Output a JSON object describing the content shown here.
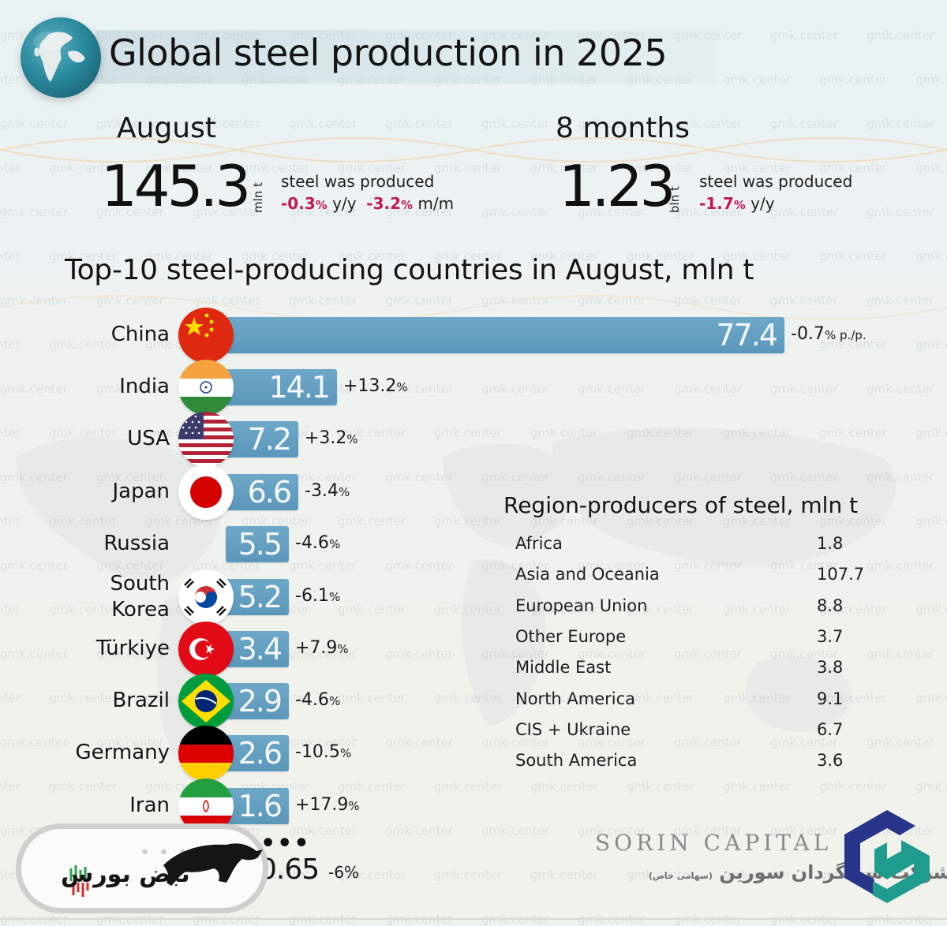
{
  "header": {
    "title": "Global steel production in 2025"
  },
  "august": {
    "label": "August",
    "value": "145.3",
    "unit": "mln t",
    "description": "steel was produced",
    "yoy_value": "-0.3",
    "yoy_suffix": "y/y",
    "mom_value": "-3.2",
    "mom_suffix": "m/m"
  },
  "eight_months": {
    "label": "8 months",
    "value": "1.23",
    "unit": "bln t",
    "description": "steel was produced",
    "yoy_value": "-1.7",
    "yoy_suffix": "y/y"
  },
  "chart_data": {
    "type": "bar",
    "orientation": "horizontal",
    "title": "Top-10 steel-producing countries in August, mln t",
    "xlabel": "",
    "ylabel": "",
    "categories": [
      "China",
      "India",
      "USA",
      "Japan",
      "Russia",
      "South Korea",
      "Türkiye",
      "Brazil",
      "Germany",
      "Iran"
    ],
    "values": [
      77.4,
      14.1,
      7.2,
      6.6,
      5.5,
      5.2,
      3.4,
      2.9,
      2.6,
      1.6
    ],
    "value_labels": [
      "77.4",
      "14.1",
      "7.2",
      "6.6",
      "5.5",
      "5.2",
      "3.4",
      "2.9",
      "2.6",
      "1.6"
    ],
    "changes": [
      "-0.7",
      "+13.2",
      "+3.2",
      "-3.4",
      "-4.6",
      "-6.1",
      "+7.9",
      "-4.6",
      "-10.5",
      "+17.9"
    ],
    "change_suffix_first": "p./p.",
    "xlim": [
      0,
      77.4
    ],
    "extra_row": {
      "ellipsis": "•••",
      "value": "0.65",
      "change": "-6%"
    }
  },
  "flags": [
    "china-flag-icon",
    "india-flag-icon",
    "usa-flag-icon",
    "japan-flag-icon",
    "",
    "south-korea-flag-icon",
    "turkiye-flag-icon",
    "brazil-flag-icon",
    "germany-flag-icon",
    "iran-flag-icon"
  ],
  "regions": {
    "title": "Region-producers of steel, mln t",
    "rows": [
      {
        "name": "Africa",
        "value": "1.8"
      },
      {
        "name": "Asia and Oceania",
        "value": "107.7"
      },
      {
        "name": "European Union",
        "value": "8.8"
      },
      {
        "name": "Other Europe",
        "value": "3.7"
      },
      {
        "name": "Middle East",
        "value": "3.8"
      },
      {
        "name": "North America",
        "value": "9.1"
      },
      {
        "name": "CIS + Ukraine",
        "value": "6.7"
      },
      {
        "name": "South America",
        "value": "3.6"
      }
    ]
  },
  "watermark": "gmk.center",
  "branding": {
    "badge_text": "نبض بورس",
    "sorin_en": "SORIN CAPITAL",
    "sorin_fa": "شرکت سبدگردان سورین",
    "sorin_fa_small": "(سهامی خاص)"
  },
  "colors": {
    "bar": "#5e9abd",
    "negative_accent": "#c2185b",
    "sorin_dark": "#27358a",
    "sorin_teal": "#1f9c8e"
  }
}
